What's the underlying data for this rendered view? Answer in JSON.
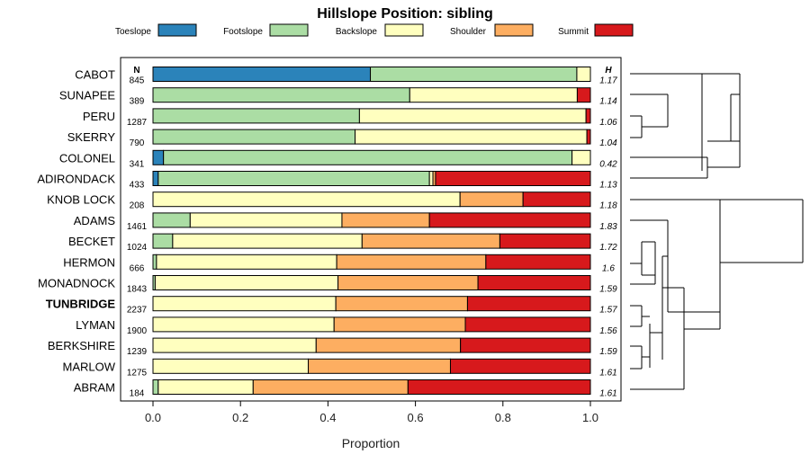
{
  "chart_data": {
    "type": "bar",
    "stacked": true,
    "orientation": "horizontal",
    "title": "Hillslope Position: sibling",
    "xlabel": "Proportion",
    "ylabel": "",
    "xlim": [
      0,
      1
    ],
    "x_ticks": [
      "0.0",
      "0.2",
      "0.4",
      "0.6",
      "0.8",
      "1.0"
    ],
    "legend_position": "top",
    "n_header": "N",
    "h_header": "H",
    "highlight_category": "TUNBRIDGE",
    "series": [
      {
        "name": "Toeslope",
        "color": "#2B83BA"
      },
      {
        "name": "Footslope",
        "color": "#ABDDA4"
      },
      {
        "name": "Backslope",
        "color": "#FFFFBF"
      },
      {
        "name": "Shoulder",
        "color": "#FDAE61"
      },
      {
        "name": "Summit",
        "color": "#D7191C"
      }
    ],
    "categories": [
      "CABOT",
      "SUNAPEE",
      "PERU",
      "SKERRY",
      "COLONEL",
      "ADIRONDACK",
      "KNOB LOCK",
      "ADAMS",
      "BECKET",
      "HERMON",
      "MONADNOCK",
      "TUNBRIDGE",
      "LYMAN",
      "BERKSHIRE",
      "MARLOW",
      "ABRAM"
    ],
    "n": [
      "845",
      "389",
      "1287",
      "790",
      "341",
      "433",
      "208",
      "1461",
      "1024",
      "666",
      "1843",
      "2237",
      "1900",
      "1239",
      "1275",
      "184"
    ],
    "h": [
      "1.17",
      "1.14",
      "1.06",
      "1.04",
      "0.42",
      "1.13",
      "1.18",
      "1.83",
      "1.72",
      "1.6",
      "1.59",
      "1.57",
      "1.56",
      "1.59",
      "1.61",
      "1.61"
    ],
    "values": [
      [
        0.497,
        0.472,
        0.031,
        0.0,
        0.0
      ],
      [
        0.0,
        0.587,
        0.383,
        0.0,
        0.03
      ],
      [
        0.0,
        0.472,
        0.518,
        0.0,
        0.01
      ],
      [
        0.0,
        0.462,
        0.53,
        0.0,
        0.008
      ],
      [
        0.024,
        0.934,
        0.042,
        0.0,
        0.0
      ],
      [
        0.012,
        0.62,
        0.008,
        0.006,
        0.354
      ],
      [
        0.0,
        0.0,
        0.702,
        0.144,
        0.154
      ],
      [
        0.0,
        0.085,
        0.347,
        0.2,
        0.368
      ],
      [
        0.0,
        0.045,
        0.433,
        0.315,
        0.207
      ],
      [
        0.0,
        0.008,
        0.412,
        0.341,
        0.239
      ],
      [
        0.0,
        0.005,
        0.418,
        0.32,
        0.257
      ],
      [
        0.0,
        0.0,
        0.418,
        0.301,
        0.281
      ],
      [
        0.0,
        0.0,
        0.414,
        0.3,
        0.286
      ],
      [
        0.0,
        0.0,
        0.373,
        0.33,
        0.297
      ],
      [
        0.0,
        0.0,
        0.355,
        0.325,
        0.32
      ],
      [
        0.0,
        0.012,
        0.217,
        0.354,
        0.417
      ]
    ]
  }
}
